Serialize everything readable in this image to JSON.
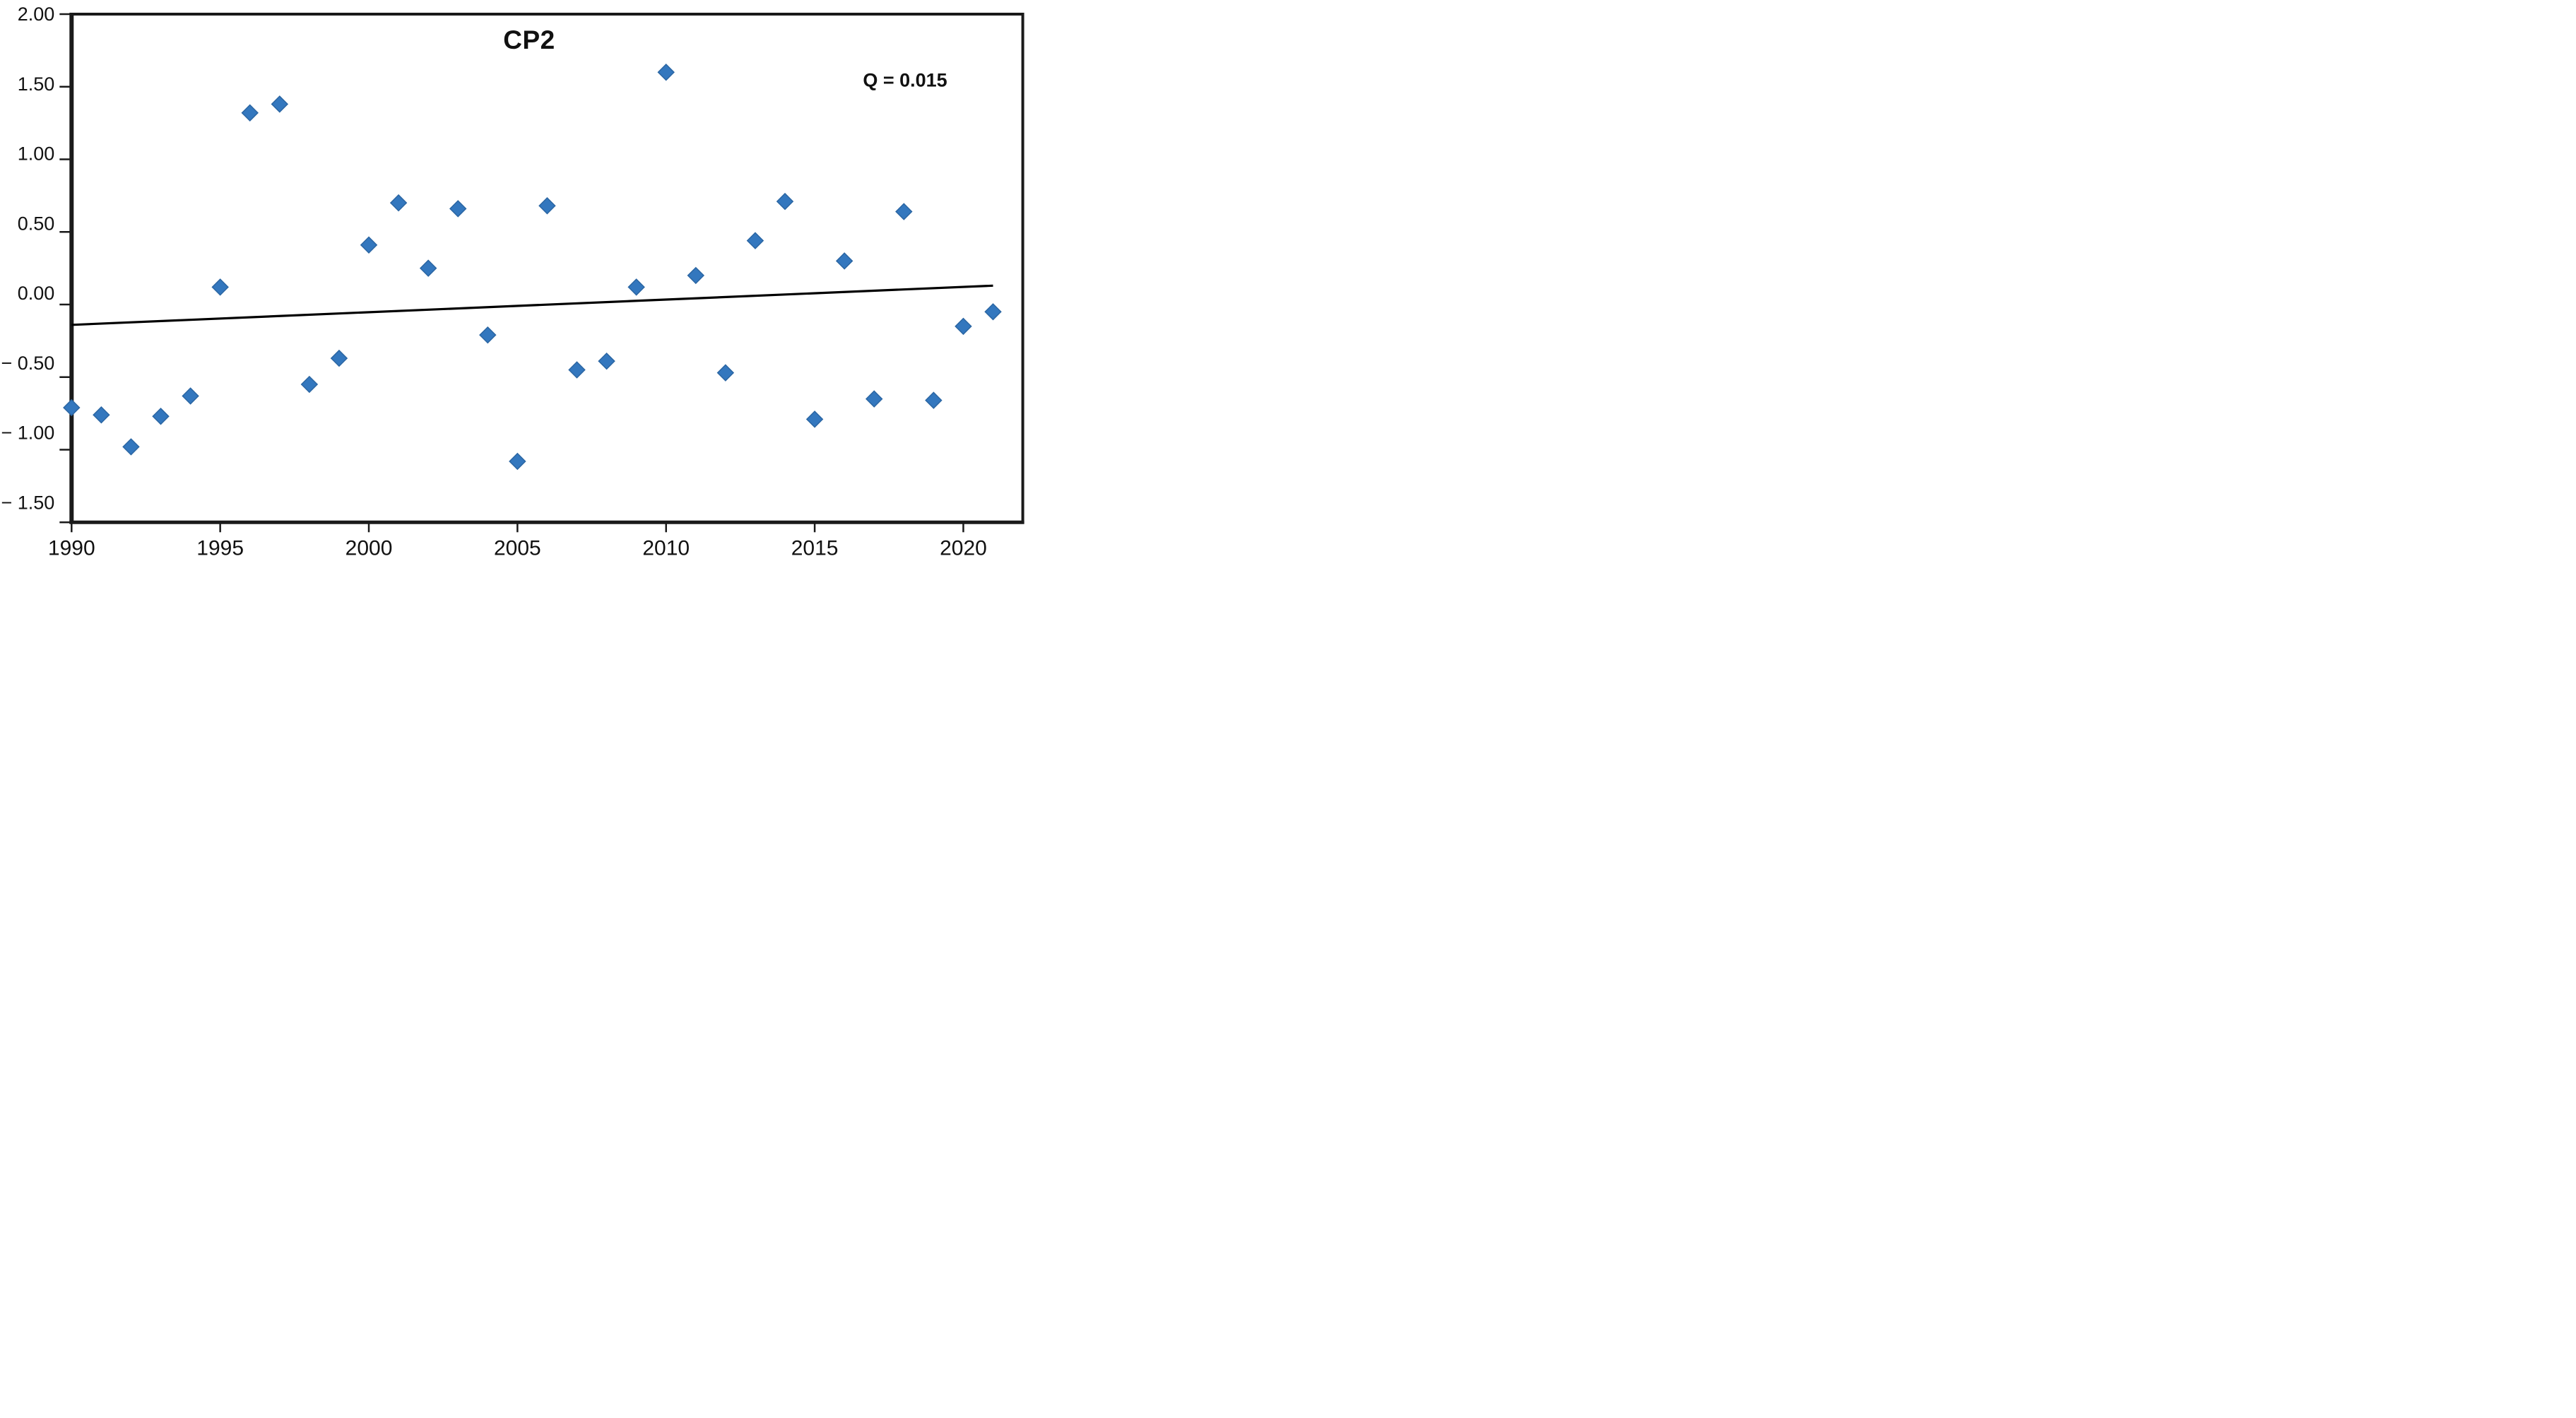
{
  "title": "CP2",
  "annotation": "Q = 0.015",
  "chart_data": {
    "type": "scatter",
    "title": "CP2",
    "annotation": "Q = 0.015",
    "xlabel": "",
    "ylabel": "",
    "legend": "none",
    "grid": false,
    "xlim": [
      1990,
      2022
    ],
    "ylim": [
      -1.5,
      2.0
    ],
    "x_ticks": [
      1990,
      1995,
      2000,
      2005,
      2010,
      2015,
      2020
    ],
    "y_ticks": [
      {
        "v": 2.0,
        "label": "2.00"
      },
      {
        "v": 1.5,
        "label": "1.50"
      },
      {
        "v": 1.0,
        "label": "1.00"
      },
      {
        "v": 0.5,
        "label": "0.50"
      },
      {
        "v": 0.0,
        "label": "0.00"
      },
      {
        "v": -0.5,
        "label": "− 0.50"
      },
      {
        "v": -1.0,
        "label": "− 1.00"
      },
      {
        "v": -1.5,
        "label": "− 1.50"
      }
    ],
    "marker": "diamond",
    "marker_color": "#3377BE",
    "marker_edge_color": "#2B66A3",
    "axis_color": "#1a1a1a",
    "trend_line": {
      "x_start": 1990,
      "y_start": -0.14,
      "x_end": 2021,
      "y_end": 0.13,
      "color": "#000000"
    },
    "x": [
      1990,
      1991,
      1992,
      1993,
      1994,
      1995,
      1996,
      1997,
      1998,
      1999,
      2000,
      2001,
      2002,
      2003,
      2004,
      2005,
      2006,
      2007,
      2008,
      2009,
      2010,
      2011,
      2012,
      2013,
      2014,
      2015,
      2016,
      2017,
      2018,
      2019,
      2020,
      2021
    ],
    "values": [
      -0.71,
      -0.76,
      -0.98,
      -0.77,
      -0.63,
      0.12,
      1.32,
      1.38,
      -0.55,
      -0.37,
      0.41,
      0.7,
      0.25,
      0.66,
      -0.21,
      -1.08,
      0.68,
      -0.45,
      -0.39,
      0.12,
      1.6,
      0.2,
      -0.47,
      0.44,
      0.71,
      -0.79,
      0.3,
      -0.65,
      0.64,
      -0.66,
      -0.15,
      -0.05
    ]
  }
}
